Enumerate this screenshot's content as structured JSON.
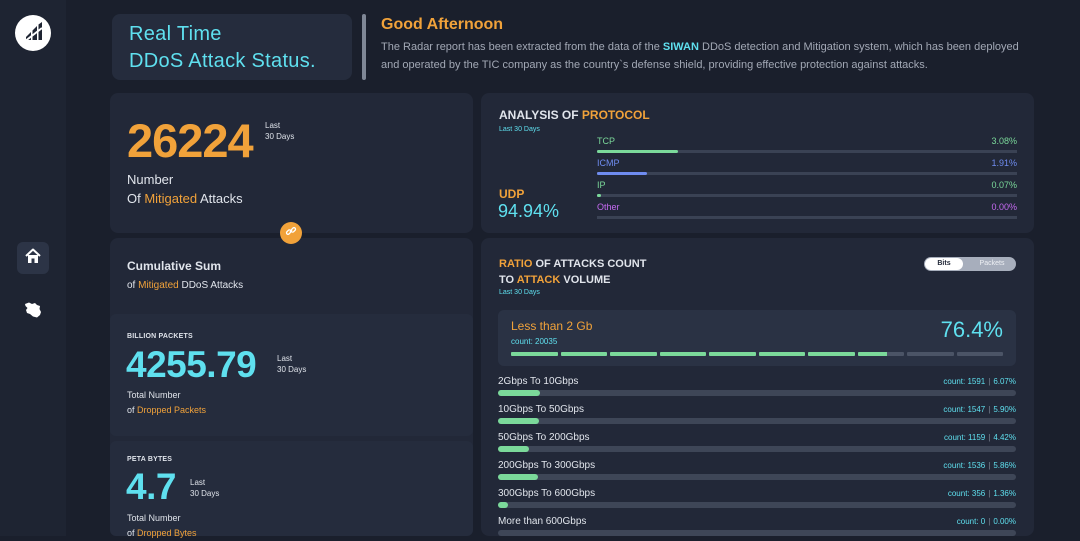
{
  "colors": {
    "accent_cyan": "#5fe0ef",
    "accent_orange": "#f1a23a",
    "bar_green": "#7bd99a"
  },
  "sidebar": {
    "logo_icon": "siwan-logo-icon",
    "items": [
      {
        "icon": "home-icon",
        "active": true
      },
      {
        "icon": "iran-map-icon",
        "active": false
      }
    ]
  },
  "header": {
    "title_line1": "Real Time",
    "title_line2": "DDoS Attack Status.",
    "greeting": "Good Afternoon",
    "desc_before": " The Radar report has been extracted from the data of the ",
    "desc_highlight": "SIWAN",
    "desc_after": " DDoS detection and Mitigation system, which has been deployed and operated by the TIC company as the country`s defense shield, providing effective protection against attacks."
  },
  "mitigated": {
    "value": "26224",
    "period_line1": "Last",
    "period_line2": "30 Days",
    "label_line1": "Number",
    "label_of": "Of ",
    "label_highlight": "Mitigated",
    "label_after": " Attacks",
    "link_icon": "link-icon"
  },
  "cumulative": {
    "title": "Cumulative Sum",
    "sub_of": "of ",
    "sub_highlight": "Mitigated",
    "sub_after": " DDoS Attacks",
    "packets": {
      "caption": "BILLION PACKETS",
      "value": "4255.79",
      "period_line1": "Last",
      "period_line2": "30 Days",
      "label_line1": "Total Number",
      "label_of": "of ",
      "label_highlight": "Dropped Packets"
    },
    "bytes": {
      "caption": "PETA BYTES",
      "value": "4.7",
      "period_line1": "Last",
      "period_line2": "30 Days",
      "label_line1": "Total Number",
      "label_of": "of ",
      "label_highlight": "Dropped Bytes"
    }
  },
  "protocol": {
    "title_prefix": "ANALYSIS OF ",
    "title_highlight": "PROTOCOL",
    "period": "Last 30 Days",
    "top_name": "UDP",
    "top_value": "94.94%",
    "items": [
      {
        "name": "TCP",
        "value": "3.08%",
        "percent": 3.08,
        "color": "#7bd99a"
      },
      {
        "name": "ICMP",
        "value": "1.91%",
        "percent": 1.91,
        "color": "#6f8cf0"
      },
      {
        "name": "IP",
        "value": "0.07%",
        "percent": 0.07,
        "color": "#7bd99a"
      },
      {
        "name": "Other",
        "value": "0.00%",
        "percent": 0.0,
        "color": "#c46af0"
      }
    ]
  },
  "ratio": {
    "title_highlight1": "RATIO",
    "title_mid": " OF ATTACKS COUNT",
    "title_to": "TO ",
    "title_highlight2": "ATTACK",
    "title_end": " VOLUME",
    "period": "Last 30 Days",
    "toggle": {
      "active": "Bits",
      "inactive": "Packets"
    },
    "highlight": {
      "label": "Less than 2 Gb",
      "count": "count: 20035",
      "value": "76.4%",
      "percent": 76.4
    },
    "rows": [
      {
        "label": "2Gbps To 10Gbps",
        "count": "count: 1591",
        "value": "6.07%",
        "percent": 6.07
      },
      {
        "label": "10Gbps To 50Gbps",
        "count": "count: 1547",
        "value": "5.90%",
        "percent": 5.9
      },
      {
        "label": "50Gbps To 200Gbps",
        "count": "count: 1159",
        "value": "4.42%",
        "percent": 4.42
      },
      {
        "label": "200Gbps To 300Gbps",
        "count": "count: 1536",
        "value": "5.86%",
        "percent": 5.86
      },
      {
        "label": "300Gbps To 600Gbps",
        "count": "count: 356",
        "value": "1.36%",
        "percent": 1.36
      },
      {
        "label": "More than 600Gbps",
        "count": "count: 0",
        "value": "0.00%",
        "percent": 0.0
      }
    ]
  }
}
